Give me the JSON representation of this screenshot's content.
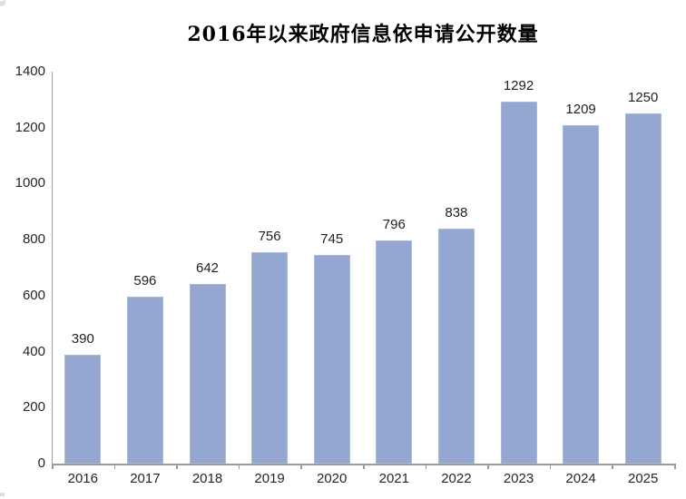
{
  "page": {
    "background_color": "#ffffff"
  },
  "chart_data": {
    "type": "bar",
    "title": "2016年以来政府信息依申请公开数量",
    "categories": [
      "2016",
      "2017",
      "2018",
      "2019",
      "2020",
      "2021",
      "2022",
      "2023",
      "2024",
      "2025"
    ],
    "values": [
      390,
      596,
      642,
      756,
      745,
      796,
      838,
      1292,
      1209,
      1250
    ],
    "xlabel": "",
    "ylabel": "",
    "ylim": [
      0,
      1400
    ],
    "ytick_interval": 200,
    "yticks": [
      0,
      200,
      400,
      600,
      800,
      1000,
      1200,
      1400
    ],
    "grid": false,
    "legend_position": "none",
    "data_labels": true,
    "bar_color": "#94a7d0",
    "bar_border_color": "#aab9da",
    "axis_color": "#9a9a9a",
    "label_color": "#262626",
    "title_color": "#000000"
  }
}
